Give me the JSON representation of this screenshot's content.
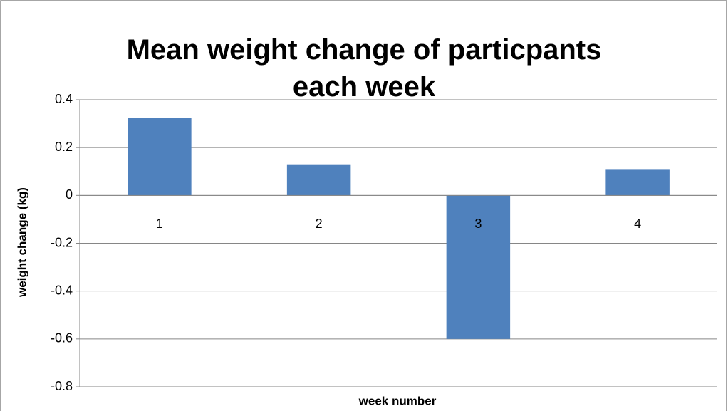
{
  "chart_data": {
    "type": "bar",
    "title": "Mean weight change of particpants each week",
    "y_label": "weight change (kg)",
    "x_label": "week number",
    "categories": [
      "1",
      "2",
      "3",
      "4"
    ],
    "values": [
      0.325,
      0.13,
      -0.6,
      0.11
    ],
    "color": "#4f81bd",
    "ylim": [
      -0.8,
      0.4
    ],
    "yticks": [
      -0.8,
      -0.6,
      -0.4,
      -0.2,
      0,
      0.2,
      0.4
    ],
    "grid": true
  }
}
